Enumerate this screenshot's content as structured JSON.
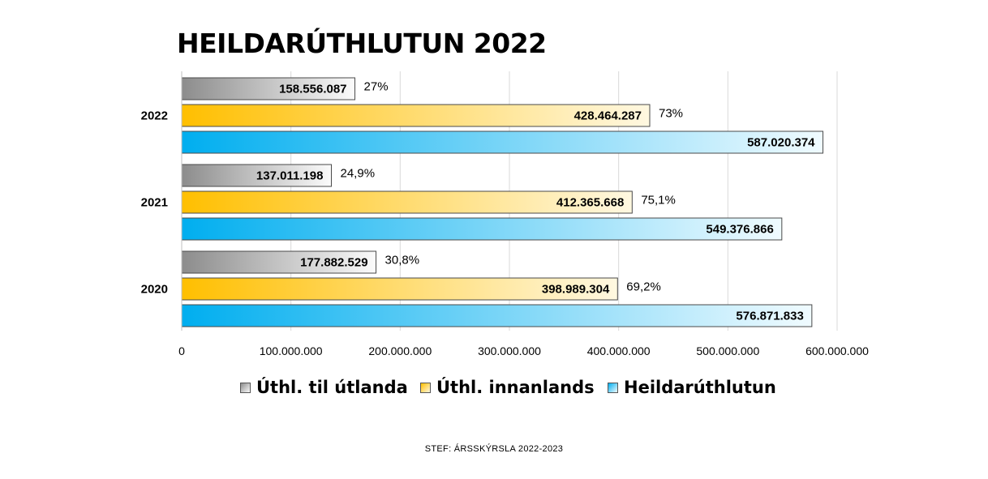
{
  "footer": "STEF: ÁRSSKÝRSLA 2022-2023",
  "colors": {
    "utlanda_start": "#8c8c8c",
    "utlanda_end": "#fbfbfb",
    "innanlands_start": "#ffbf00",
    "innanlands_end": "#fff8e1",
    "heild_start": "#00aeef",
    "heild_end": "#f0fbff",
    "grid": "#d9d9d9"
  },
  "chart_data": {
    "type": "bar",
    "orientation": "horizontal",
    "title": "HEILDARÚTHLUTUN 2022",
    "categories": [
      "2022",
      "2021",
      "2020"
    ],
    "series": [
      {
        "name": "Úthl. til útlanda",
        "values": [
          158556087,
          137011198,
          177882529
        ],
        "value_labels": [
          "158.556.087",
          "137.011.198",
          "177.882.529"
        ],
        "pct_labels": [
          "27%",
          "24,9%",
          "30,8%"
        ]
      },
      {
        "name": "Úthl. innanlands",
        "values": [
          428464287,
          412365668,
          398989304
        ],
        "value_labels": [
          "428.464.287",
          "412.365.668",
          "398.989.304"
        ],
        "pct_labels": [
          "73%",
          "75,1%",
          "69,2%"
        ]
      },
      {
        "name": "Heildarúthlutun",
        "values": [
          587020374,
          549376866,
          576871833
        ],
        "value_labels": [
          "587.020.374",
          "549.376.866",
          "576.871.833"
        ],
        "pct_labels": [
          "",
          "",
          ""
        ]
      }
    ],
    "xlim": [
      0,
      600000000
    ],
    "xticks": [
      0,
      100000000,
      200000000,
      300000000,
      400000000,
      500000000,
      600000000
    ],
    "xtick_labels": [
      "0",
      "100.000.000",
      "200.000.000",
      "300.000.000",
      "400.000.000",
      "500.000.000",
      "600.000.000"
    ],
    "grid": true,
    "legend_position": "bottom"
  }
}
